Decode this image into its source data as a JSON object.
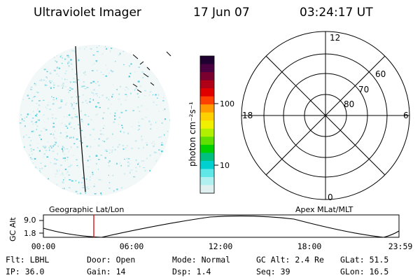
{
  "header": {
    "title": "Ultraviolet Imager",
    "date": "17 Jun 07",
    "time": "03:24:17 UT"
  },
  "colorbar": {
    "unit_label": "photon cm⁻²s⁻¹",
    "ticks": [
      "100",
      "10"
    ],
    "colors": [
      "#200030",
      "#4a0040",
      "#7a0030",
      "#b00018",
      "#e00000",
      "#ff4000",
      "#ff9a00",
      "#ffd000",
      "#f0f000",
      "#b0f000",
      "#60e000",
      "#00d000",
      "#00c080",
      "#00d0d0",
      "#60e8e8",
      "#b0f0f0",
      "#e0f0f0"
    ]
  },
  "polar_grid": {
    "mlt_labels": {
      "top": "12",
      "left": "18",
      "right": "6",
      "bottom": "0"
    },
    "mlat_labels": [
      "60",
      "70",
      "80"
    ]
  },
  "panel_labels": {
    "left": "Geographic Lat/Lon",
    "right": "Apex MLat/MLT"
  },
  "altitude_plot": {
    "ylabel": "GC Alt",
    "y_ticks": [
      "9.0",
      "1.8"
    ],
    "x_ticks": [
      "00:00",
      "06:00",
      "12:00",
      "18:00",
      "23:59"
    ],
    "marker_time_hours": 3.4,
    "marker_color": "#e00000"
  },
  "info_row1": [
    {
      "label": "Flt:",
      "value": "LBHL"
    },
    {
      "label": "Door:",
      "value": "Open"
    },
    {
      "label": "Mode:",
      "value": "Normal"
    },
    {
      "label": "GC Alt:",
      "value": "2.4 Re"
    },
    {
      "label": "GLat:",
      "value": "51.5"
    }
  ],
  "info_row2": [
    {
      "label": "IP:",
      "value": "36.0"
    },
    {
      "label": "Gain:",
      "value": "14"
    },
    {
      "label": "Dsp:",
      "value": "1.4"
    },
    {
      "label": "Seq:",
      "value": "39"
    },
    {
      "label": "GLon:",
      "value": "16.5"
    }
  ]
}
